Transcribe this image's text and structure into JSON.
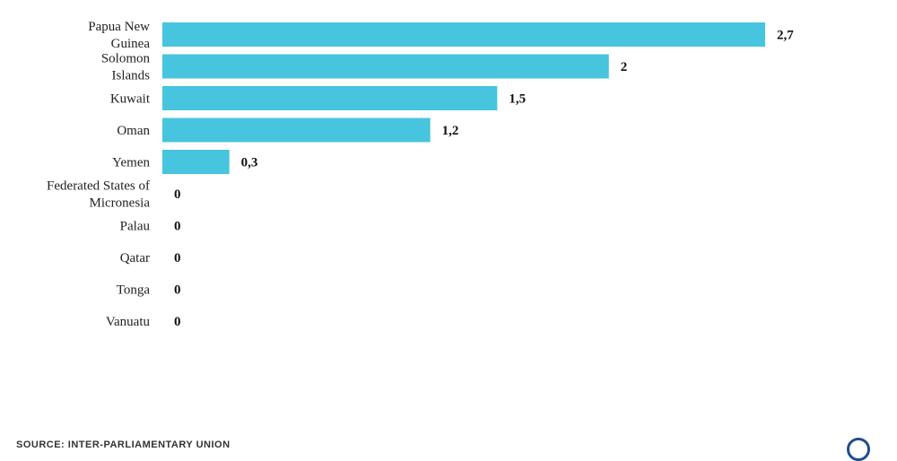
{
  "chart_data": {
    "type": "bar",
    "orientation": "horizontal",
    "categories": [
      "Papua New Guinea",
      "Solomon Islands",
      "Kuwait",
      "Oman",
      "Yemen",
      "Federated States of Micronesia",
      "Palau",
      "Qatar",
      "Tonga",
      "Vanuatu"
    ],
    "category_lines": [
      [
        "Papua New",
        "Guinea"
      ],
      [
        "Solomon",
        "Islands"
      ],
      [
        "Kuwait"
      ],
      [
        "Oman"
      ],
      [
        "Yemen"
      ],
      [
        "Federated States of",
        "Micronesia"
      ],
      [
        "Palau"
      ],
      [
        "Qatar"
      ],
      [
        "Tonga"
      ],
      [
        "Vanuatu"
      ]
    ],
    "values": [
      2.7,
      2,
      1.5,
      1.2,
      0.3,
      0,
      0,
      0,
      0,
      0
    ],
    "value_labels": [
      "2,7",
      "2",
      "1,5",
      "1,2",
      "0,3",
      "0",
      "0",
      "0",
      "0",
      "0"
    ],
    "bar_color": "#47c4de",
    "xlim": [
      0,
      2.7
    ],
    "grid": false,
    "legend": "none"
  },
  "footer": {
    "source": "SOURCE: INTER-PARLIAMENTARY UNION"
  }
}
